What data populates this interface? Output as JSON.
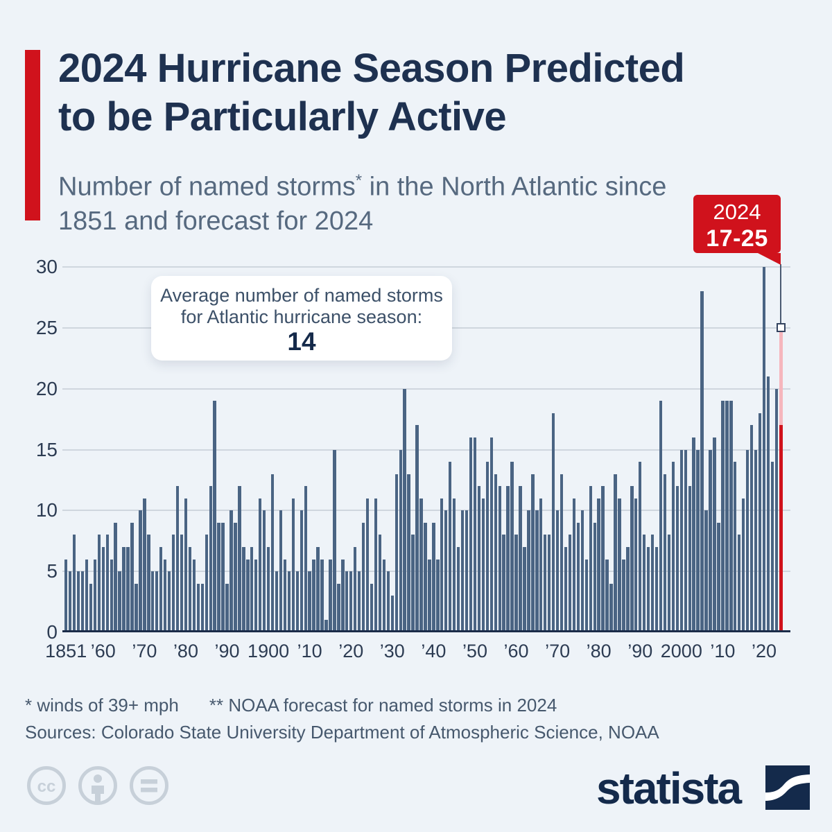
{
  "header": {
    "title_line1": "2024 Hurricane Season Predicted",
    "title_line2": "to be Particularly Active",
    "subtitle_before": "Number of named storms",
    "subtitle_sup": "*",
    "subtitle_after": " in the North Atlantic since 1851 and forecast for 2024"
  },
  "badge": {
    "year": "2024",
    "range": "17-25"
  },
  "annotation": {
    "line1": "Average number of named storms",
    "line2": "for Atlantic hurricane season:",
    "value": "14"
  },
  "footnotes": {
    "note1": "* winds of 39+ mph",
    "note2": "** NOAA forecast for named storms in 2024",
    "sources": "Sources: Colorado State University Department of Atmospheric Science, NOAA"
  },
  "branding": {
    "wordmark": "statista",
    "icons": [
      "cc-icon",
      "attribution-icon",
      "equals-icon"
    ],
    "logo_color": "#142a4b"
  },
  "colors": {
    "background": "#eef3f8",
    "bar": "#4a6483",
    "accent_red": "#d0121c",
    "forecast_band_pink": "#f6b6bd",
    "title_navy": "#1e3150",
    "subtitle_gray_blue": "#56697f",
    "grid": "#cfd6de",
    "axis_line": "#1b2c49"
  },
  "chart_data": {
    "type": "bar",
    "title": "Number of named storms in the North Atlantic since 1851 and forecast for 2024",
    "ylabel": "",
    "xlabel": "",
    "ylim": [
      0,
      30
    ],
    "yticks": [
      0,
      5,
      10,
      15,
      20,
      25,
      30
    ],
    "grid": "horizontal",
    "year_start": 1851,
    "year_end": 2023,
    "average_named_storms": 14,
    "values": [
      6,
      5,
      8,
      5,
      5,
      6,
      4,
      6,
      8,
      7,
      8,
      6,
      9,
      5,
      7,
      7,
      9,
      4,
      10,
      11,
      8,
      5,
      5,
      7,
      6,
      5,
      8,
      12,
      8,
      11,
      7,
      6,
      4,
      4,
      8,
      12,
      19,
      9,
      9,
      4,
      10,
      9,
      12,
      7,
      6,
      7,
      6,
      11,
      10,
      7,
      13,
      5,
      10,
      6,
      5,
      11,
      5,
      10,
      12,
      5,
      6,
      7,
      6,
      1,
      6,
      15,
      4,
      6,
      5,
      5,
      7,
      5,
      9,
      11,
      4,
      11,
      8,
      6,
      5,
      3,
      13,
      15,
      20,
      13,
      8,
      17,
      11,
      9,
      6,
      9,
      6,
      11,
      10,
      14,
      11,
      7,
      10,
      10,
      16,
      16,
      12,
      11,
      14,
      16,
      13,
      12,
      8,
      12,
      14,
      8,
      12,
      7,
      10,
      13,
      10,
      11,
      8,
      8,
      18,
      10,
      13,
      7,
      8,
      11,
      9,
      10,
      6,
      12,
      9,
      11,
      12,
      6,
      4,
      13,
      11,
      6,
      7,
      12,
      11,
      14,
      8,
      7,
      8,
      7,
      19,
      13,
      8,
      14,
      12,
      15,
      15,
      12,
      16,
      15,
      28,
      10,
      15,
      16,
      9,
      19,
      19,
      19,
      14,
      8,
      11,
      15,
      17,
      15,
      18,
      30,
      21,
      14,
      20
    ],
    "forecast": {
      "year": 2024,
      "label": "17-25",
      "low": 17,
      "high": 25
    },
    "xticks": [
      {
        "year": 1851,
        "label": "1851"
      },
      {
        "year": 1860,
        "label": "’60"
      },
      {
        "year": 1870,
        "label": "’70"
      },
      {
        "year": 1880,
        "label": "’80"
      },
      {
        "year": 1890,
        "label": "’90"
      },
      {
        "year": 1900,
        "label": "1900"
      },
      {
        "year": 1910,
        "label": "’10"
      },
      {
        "year": 1920,
        "label": "’20"
      },
      {
        "year": 1930,
        "label": "’30"
      },
      {
        "year": 1940,
        "label": "’40"
      },
      {
        "year": 1950,
        "label": "’50"
      },
      {
        "year": 1960,
        "label": "’60"
      },
      {
        "year": 1970,
        "label": "’70"
      },
      {
        "year": 1980,
        "label": "’80"
      },
      {
        "year": 1990,
        "label": "’90"
      },
      {
        "year": 2000,
        "label": "2000"
      },
      {
        "year": 2010,
        "label": "’10"
      },
      {
        "year": 2020,
        "label": "’20"
      }
    ]
  }
}
